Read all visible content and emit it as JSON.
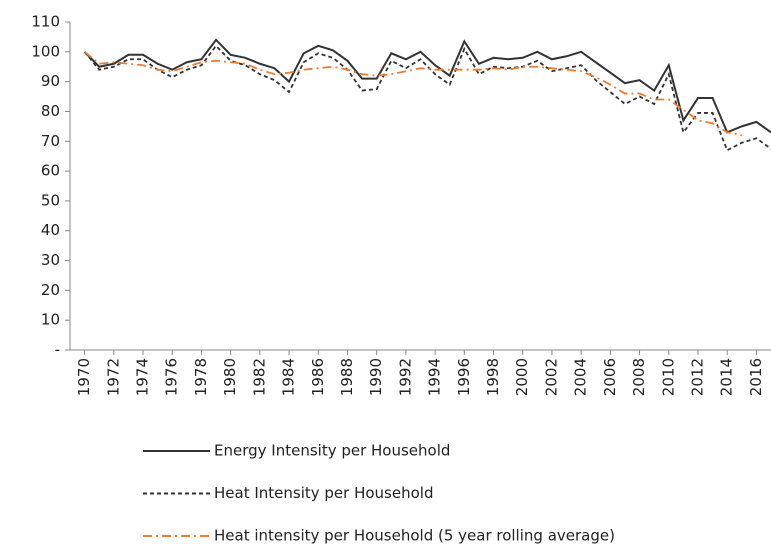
{
  "chart_data": {
    "type": "line",
    "x": [
      1970,
      1971,
      1972,
      1973,
      1974,
      1975,
      1976,
      1977,
      1978,
      1979,
      1980,
      1981,
      1982,
      1983,
      1984,
      1985,
      1986,
      1987,
      1988,
      1989,
      1990,
      1991,
      1992,
      1993,
      1994,
      1995,
      1996,
      1997,
      1998,
      1999,
      2000,
      2001,
      2002,
      2003,
      2004,
      2005,
      2006,
      2007,
      2008,
      2009,
      2010,
      2011,
      2012,
      2013,
      2014,
      2015,
      2016,
      2017
    ],
    "xlim": [
      1969,
      2017
    ],
    "xticks": [
      1970,
      1972,
      1974,
      1976,
      1978,
      1980,
      1982,
      1984,
      1986,
      1988,
      1990,
      1992,
      1994,
      1996,
      1998,
      2000,
      2002,
      2004,
      2006,
      2008,
      2010,
      2012,
      2014,
      2016
    ],
    "ylim": [
      0,
      110
    ],
    "yticks": [
      {
        "value": 0,
        "label": "-"
      },
      10,
      20,
      30,
      40,
      50,
      60,
      70,
      80,
      90,
      100,
      110
    ],
    "legend": "bottom",
    "series": [
      {
        "name": "Energy Intensity per Household",
        "color": "#333333",
        "style": "solid",
        "values": [
          100,
          95,
          96,
          99,
          99,
          96,
          94,
          96.5,
          97.5,
          104,
          99,
          98,
          96,
          94.5,
          90,
          99.5,
          102,
          100.5,
          97,
          91,
          91,
          99.5,
          97.5,
          100,
          95.5,
          92,
          103.5,
          96,
          98,
          97.5,
          98,
          100,
          97.5,
          98.5,
          100,
          96.5,
          93,
          89.5,
          90.5,
          87,
          95.5,
          77,
          84.5,
          84.5,
          73,
          75,
          76.5,
          73
        ]
      },
      {
        "name": "Heat Intensity per Household",
        "color": "#333333",
        "style": "dashed",
        "values": [
          100,
          94,
          95,
          97.5,
          97.5,
          94,
          91.5,
          94,
          95.5,
          102,
          97,
          95.5,
          92.5,
          90.5,
          86.5,
          96.5,
          99.5,
          98,
          94,
          87,
          87.5,
          97,
          94.5,
          97.5,
          92.5,
          89,
          101,
          92.5,
          95,
          94.5,
          95,
          97,
          93.5,
          94.5,
          95.5,
          90.5,
          86.5,
          82.5,
          85,
          82.5,
          92.5,
          73,
          79.5,
          79.5,
          67,
          69.5,
          71,
          67.5
        ]
      },
      {
        "name": "Heat intensity per Household (5 year rolling average)",
        "color": "#ed7d31",
        "style": "dashdot",
        "values": [
          100,
          96,
          96.5,
          96,
          95.5,
          94,
          93.5,
          95,
          96.5,
          97,
          96.5,
          96,
          94,
          92.5,
          93,
          94,
          94.5,
          95,
          94,
          92.5,
          92,
          92.5,
          93.5,
          94.5,
          94,
          94,
          94,
          94,
          94.5,
          94,
          95,
          95,
          94.5,
          94,
          93.5,
          91.5,
          89,
          86,
          86,
          84,
          84,
          80.5,
          77,
          76,
          73,
          72,
          null,
          null
        ]
      }
    ]
  }
}
